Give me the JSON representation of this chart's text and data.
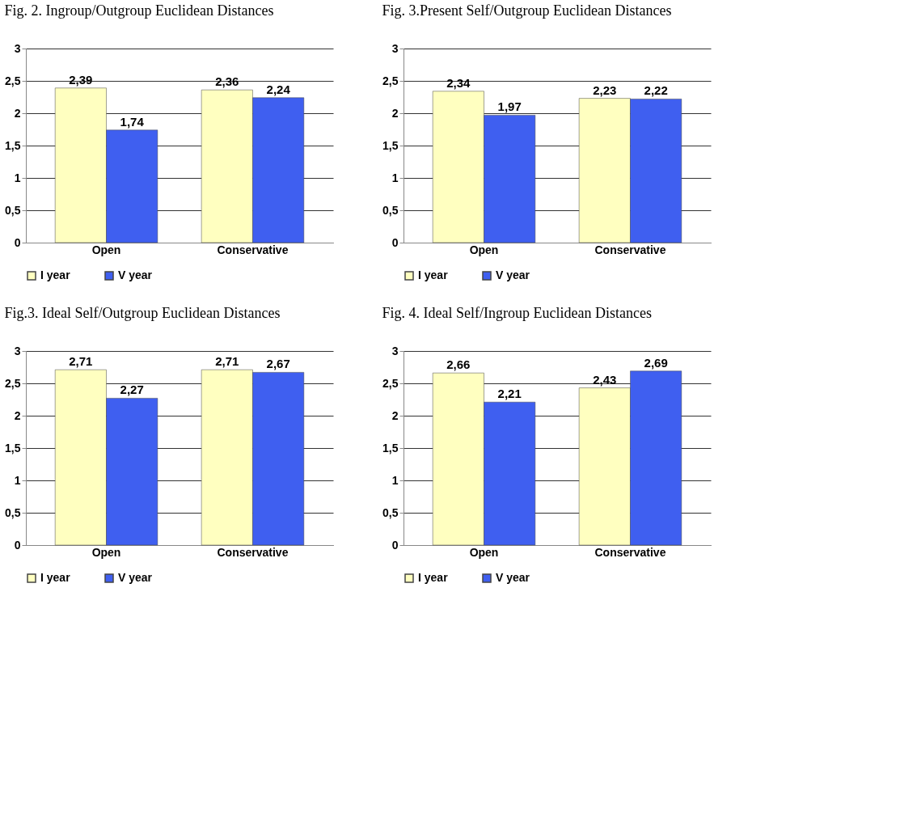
{
  "chart_data": [
    {
      "type": "bar",
      "title": "Fig. 2. Ingroup/Outgroup Euclidean Distances",
      "categories": [
        "Open",
        "Conservative"
      ],
      "series": [
        {
          "name": "I year",
          "color": "#ffffc0",
          "values": [
            2.39,
            2.36
          ],
          "value_labels": [
            "2,39",
            "2,36"
          ]
        },
        {
          "name": "V year",
          "color": "#3f5ff0",
          "values": [
            1.74,
            2.24
          ],
          "value_labels": [
            "1,74",
            "2,24"
          ]
        }
      ],
      "ylim": [
        0,
        3
      ],
      "yticks": [
        0,
        {
          "value": 0.5,
          "label": "0,5"
        },
        1,
        {
          "value": 1.5,
          "label": "1,5"
        },
        2,
        {
          "value": 2.5,
          "label": "2,5"
        },
        3
      ],
      "grid": "y",
      "legend": "bottom"
    },
    {
      "type": "bar",
      "title": "Fig. 3.Present Self/Outgroup Euclidean Distances",
      "categories": [
        "Open",
        "Conservative"
      ],
      "series": [
        {
          "name": "I year",
          "color": "#ffffc0",
          "values": [
            2.34,
            2.23
          ],
          "value_labels": [
            "2,34",
            "2,23"
          ]
        },
        {
          "name": "V year",
          "color": "#3f5ff0",
          "values": [
            1.97,
            2.22
          ],
          "value_labels": [
            "1,97",
            "2,22"
          ]
        }
      ],
      "ylim": [
        0,
        3
      ],
      "yticks": [
        0,
        {
          "value": 0.5,
          "label": "0,5"
        },
        1,
        {
          "value": 1.5,
          "label": "1,5"
        },
        2,
        {
          "value": 2.5,
          "label": "2,5"
        },
        3
      ],
      "grid": "y",
      "legend": "bottom"
    },
    {
      "type": "bar",
      "title": "Fig.3. Ideal Self/Outgroup Euclidean Distances",
      "categories": [
        "Open",
        "Conservative"
      ],
      "series": [
        {
          "name": "I year",
          "color": "#ffffc0",
          "values": [
            2.71,
            2.71
          ],
          "value_labels": [
            "2,71",
            "2,71"
          ]
        },
        {
          "name": "V year",
          "color": "#3f5ff0",
          "values": [
            2.27,
            2.67
          ],
          "value_labels": [
            "2,27",
            "2,67"
          ]
        }
      ],
      "ylim": [
        0,
        3
      ],
      "yticks": [
        0,
        {
          "value": 0.5,
          "label": "0,5"
        },
        1,
        {
          "value": 1.5,
          "label": "1,5"
        },
        2,
        {
          "value": 2.5,
          "label": "2,5"
        },
        3
      ],
      "grid": "y",
      "legend": "bottom"
    },
    {
      "type": "bar",
      "title": "Fig. 4. Ideal Self/Ingroup Euclidean Distances",
      "categories": [
        "Open",
        "Conservative"
      ],
      "series": [
        {
          "name": "I year",
          "color": "#ffffc0",
          "values": [
            2.66,
            2.43
          ],
          "value_labels": [
            "2,66",
            "2,43"
          ]
        },
        {
          "name": "V year",
          "color": "#3f5ff0",
          "values": [
            2.21,
            2.69
          ],
          "value_labels": [
            "2,21",
            "2,69"
          ]
        }
      ],
      "ylim": [
        0,
        3
      ],
      "yticks": [
        0,
        {
          "value": 0.5,
          "label": "0,5"
        },
        1,
        {
          "value": 1.5,
          "label": "1,5"
        },
        2,
        {
          "value": 2.5,
          "label": "2,5"
        },
        3
      ],
      "grid": "y",
      "legend": "bottom"
    }
  ]
}
